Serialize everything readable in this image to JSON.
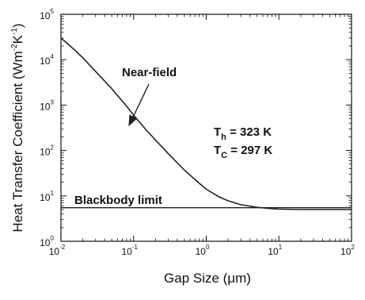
{
  "chart_data": {
    "type": "line",
    "xlabel": "Gap Size (μm)",
    "ylabel": "Heat Transfer Coefficient (Wm-2K-1)",
    "ylabel_parts": {
      "base": "Heat Transfer Coefficient (Wm",
      "exp1": "-2",
      "mid": "K",
      "exp2": "-1",
      "end": ")"
    },
    "xscale": "log",
    "yscale": "log",
    "xlim": [
      0.01,
      100
    ],
    "ylim": [
      1,
      100000
    ],
    "x_ticks": [
      {
        "value": 0.01,
        "base": "10",
        "exp": "-2"
      },
      {
        "value": 0.1,
        "base": "10",
        "exp": "-1"
      },
      {
        "value": 1,
        "base": "10",
        "exp": "0"
      },
      {
        "value": 10,
        "base": "10",
        "exp": "1"
      },
      {
        "value": 100,
        "base": "10",
        "exp": "2"
      }
    ],
    "y_ticks": [
      {
        "value": 1,
        "base": "10",
        "exp": "0"
      },
      {
        "value": 10,
        "base": "10",
        "exp": "1"
      },
      {
        "value": 100,
        "base": "10",
        "exp": "2"
      },
      {
        "value": 1000,
        "base": "10",
        "exp": "3"
      },
      {
        "value": 10000,
        "base": "10",
        "exp": "4"
      },
      {
        "value": 100000,
        "base": "10",
        "exp": "5"
      }
    ],
    "grid": false,
    "series": [
      {
        "name": "Near-field",
        "x": [
          0.01,
          0.015,
          0.02,
          0.03,
          0.05,
          0.08,
          0.1,
          0.15,
          0.2,
          0.3,
          0.5,
          0.8,
          1,
          1.5,
          2,
          3,
          5,
          8,
          10,
          20,
          50,
          100
        ],
        "y": [
          30000,
          17000,
          11000,
          5500,
          2300,
          950,
          600,
          280,
          170,
          85,
          37,
          19,
          14,
          9.5,
          7.8,
          6.4,
          5.6,
          5.2,
          5.1,
          5.0,
          5.0,
          5.0
        ]
      },
      {
        "name": "Blackbody limit",
        "x": [
          0.01,
          100
        ],
        "y": [
          5.5,
          5.5
        ]
      }
    ],
    "annotations": {
      "near_field": "Near-field",
      "blackbody": "Blackbody limit",
      "th_prefix": "T",
      "th_sub": "h",
      "th_value": " = 323 K",
      "tc_prefix": "T",
      "tc_sub": "C",
      "tc_value": " = 297 K"
    }
  }
}
